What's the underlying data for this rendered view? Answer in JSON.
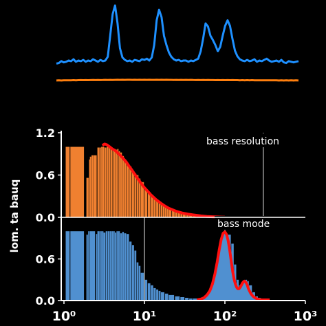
{
  "chart_data": [
    {
      "type": "line",
      "title": "",
      "xlabel": "",
      "ylabel": "",
      "grid": false,
      "legend": "none",
      "series": [
        {
          "color": "#1e90ff",
          "values": [
            0.5,
            0.6,
            0.9,
            0.7,
            0.8,
            1.0,
            0.9,
            1.2,
            0.8,
            1.0,
            0.9,
            1.1,
            0.8,
            1.0,
            0.9,
            1.2,
            1.0,
            0.8,
            1.1,
            0.9,
            1.0,
            1.6,
            5.0,
            8.5,
            9.9,
            7.0,
            3.0,
            1.5,
            1.1,
            0.9,
            1.0,
            0.8,
            1.1,
            1.0,
            0.9,
            1.2,
            1.1,
            1.3,
            1.0,
            1.5,
            3.5,
            7.5,
            9.2,
            8.0,
            5.0,
            3.5,
            2.3,
            1.6,
            1.2,
            1.0,
            1.1,
            0.9,
            1.0,
            1.0,
            0.8,
            1.0,
            0.9,
            1.1,
            1.3,
            2.5,
            4.5,
            7.0,
            6.5,
            5.0,
            4.3,
            3.5,
            2.5,
            3.2,
            5.0,
            6.6,
            7.5,
            6.6,
            4.5,
            2.6,
            1.7,
            1.2,
            1.0,
            0.9,
            1.1,
            0.9,
            1.0,
            1.2,
            0.8,
            1.0,
            0.9,
            1.1,
            1.3,
            1.0,
            0.8,
            0.9,
            1.0,
            0.8,
            1.1,
            0.7,
            0.6,
            0.9,
            0.8,
            0.7,
            0.8,
            0.9
          ]
        },
        {
          "color": "#ff7f0e",
          "values": [
            0.0,
            0.05,
            0.0,
            0.05,
            0.1,
            0.05,
            0.1,
            0.15,
            0.1,
            0.15,
            0.2,
            0.15,
            0.2,
            0.15,
            0.2,
            0.25,
            0.2,
            0.25,
            0.2,
            0.25,
            0.3,
            0.25,
            0.3,
            0.25,
            0.3,
            0.35,
            0.3,
            0.35,
            0.3,
            0.35,
            0.35,
            0.3,
            0.35,
            0.3,
            0.35,
            0.3,
            0.35,
            0.3,
            0.35,
            0.3,
            0.3,
            0.35,
            0.3,
            0.35,
            0.3,
            0.35,
            0.3,
            0.3,
            0.25,
            0.3,
            0.25,
            0.3,
            0.25,
            0.3,
            0.25,
            0.3,
            0.25,
            0.2,
            0.25,
            0.2,
            0.25,
            0.2,
            0.25,
            0.2,
            0.2,
            0.15,
            0.2,
            0.15,
            0.2,
            0.15,
            0.2,
            0.15,
            0.2,
            0.15,
            0.15,
            0.1,
            0.15,
            0.1,
            0.15,
            0.1,
            0.15,
            0.1,
            0.1,
            0.05,
            0.1,
            0.05,
            0.1,
            0.05,
            0.1,
            0.05,
            0.05,
            0.0,
            0.05,
            0.0,
            0.05,
            0.0,
            0.05,
            0.0,
            0.05,
            0.0
          ]
        }
      ]
    },
    {
      "type": "bar",
      "title": "",
      "panel_label": "bass resolution",
      "xlabel": "",
      "ylabel": "",
      "xscale": "log",
      "xlim": [
        1,
        1000
      ],
      "ylim": [
        0,
        1.2
      ],
      "yticks": [
        0.0,
        0.6,
        1.2
      ],
      "ytick_labels": [
        "0.0",
        "0.6",
        "1.2"
      ],
      "ytick_labels_partial": [
        "0.0",
        "0.6",
        "1.2"
      ],
      "bar_color": "#f08030",
      "fit_color": "#ff1010",
      "x": [
        1.05,
        1.2,
        1.9,
        2.05,
        2.1,
        2.2,
        2.3,
        2.6,
        2.8,
        2.9,
        3.0,
        3.2,
        3.4,
        3.6,
        3.8,
        4.0,
        4.2,
        4.4,
        4.6,
        4.8,
        5.0,
        5.3,
        5.6,
        6.0,
        6.5,
        7.0,
        7.5,
        8.0,
        8.5,
        9.0,
        10,
        11,
        12,
        13,
        14,
        15,
        16,
        17,
        18,
        19,
        20,
        22,
        24,
        26,
        28,
        30,
        33,
        36,
        40,
        45,
        50,
        55,
        60,
        70,
        80,
        90,
        100
      ],
      "values": [
        1.0,
        1.0,
        0.56,
        0.82,
        0.86,
        0.88,
        0.88,
        0.99,
        0.99,
        1.0,
        1.0,
        0.99,
        1.0,
        1.0,
        0.99,
        0.98,
        0.97,
        0.96,
        0.97,
        0.94,
        0.92,
        0.87,
        0.82,
        0.75,
        0.72,
        0.65,
        0.62,
        0.6,
        0.55,
        0.5,
        0.4,
        0.36,
        0.32,
        0.28,
        0.24,
        0.21,
        0.19,
        0.17,
        0.15,
        0.13,
        0.12,
        0.1,
        0.09,
        0.08,
        0.07,
        0.06,
        0.05,
        0.04,
        0.035,
        0.03,
        0.025,
        0.02,
        0.015,
        0.012,
        0.01,
        0.008,
        0.006
      ],
      "fit": {
        "x": [
          3.0,
          3.2,
          3.4,
          3.6,
          3.8,
          4.0,
          4.3,
          4.6,
          5.0,
          5.5,
          6.0,
          6.5,
          7.0,
          8.0,
          9.0,
          10,
          11,
          12,
          14,
          16,
          18,
          20,
          25,
          30,
          35,
          40,
          50,
          60,
          70,
          80,
          90,
          100
        ],
        "y": [
          1.02,
          1.04,
          1.03,
          1.01,
          0.99,
          0.97,
          0.95,
          0.92,
          0.88,
          0.83,
          0.78,
          0.72,
          0.67,
          0.57,
          0.49,
          0.42,
          0.37,
          0.32,
          0.25,
          0.2,
          0.16,
          0.13,
          0.085,
          0.06,
          0.045,
          0.035,
          0.02,
          0.013,
          0.009,
          0.006,
          0.004,
          0.003
        ]
      },
      "vlines": [
        300
      ]
    },
    {
      "type": "bar",
      "title": "",
      "panel_label": "bass mode",
      "xlabel": "",
      "ylabel": "",
      "ylabel_visible": "lom. ta bauq",
      "xscale": "log",
      "xlim": [
        1,
        1000
      ],
      "ylim": [
        0,
        1.2
      ],
      "yticks": [
        0.0,
        0.6
      ],
      "ytick_labels": [
        "0.0",
        "0.6"
      ],
      "xticks": [
        1,
        10,
        100,
        1000
      ],
      "xtick_labels": [
        "10⁰",
        "10¹",
        "10²",
        "10³"
      ],
      "bar_color": "#5090d0",
      "fit_color": "#ff1010",
      "x": [
        1.05,
        1.2,
        1.9,
        2.0,
        2.1,
        2.5,
        2.6,
        2.8,
        2.9,
        3.0,
        3.1,
        3.3,
        3.5,
        3.7,
        3.9,
        4.1,
        4.3,
        4.5,
        4.7,
        5.0,
        5.3,
        5.6,
        6.0,
        6.5,
        7.0,
        7.5,
        8.0,
        8.5,
        9.0,
        10,
        11,
        12,
        13,
        14,
        15,
        16,
        18,
        20,
        24,
        28,
        32,
        36,
        40,
        48,
        56,
        64,
        72,
        80,
        90,
        100,
        110,
        120,
        130,
        140,
        150,
        160,
        170,
        180,
        190,
        200,
        220,
        240,
        260,
        280,
        300,
        320,
        340,
        360,
        380,
        400
      ],
      "values": [
        1.0,
        1.0,
        0.95,
        1.0,
        1.0,
        0.96,
        1.0,
        1.0,
        1.0,
        1.0,
        0.98,
        1.0,
        1.0,
        1.0,
        1.0,
        1.0,
        0.98,
        1.0,
        1.0,
        0.97,
        0.99,
        0.97,
        0.96,
        0.85,
        0.8,
        0.72,
        0.55,
        0.5,
        0.4,
        0.3,
        0.25,
        0.22,
        0.18,
        0.16,
        0.14,
        0.12,
        0.1,
        0.08,
        0.06,
        0.05,
        0.04,
        0.03,
        0.03,
        0.02,
        0.05,
        0.12,
        0.25,
        0.48,
        0.68,
        0.88,
        0.95,
        0.82,
        0.52,
        0.3,
        0.22,
        0.2,
        0.25,
        0.3,
        0.28,
        0.22,
        0.12,
        0.06,
        0.04,
        0.03,
        0.02,
        0.02,
        0.015,
        0.01,
        0.01,
        0.005
      ],
      "fit": {
        "x": [
          45,
          50,
          55,
          60,
          65,
          70,
          75,
          80,
          85,
          90,
          95,
          100,
          105,
          110,
          115,
          120,
          125,
          130,
          135,
          140,
          145,
          150,
          155,
          160,
          165,
          170,
          175,
          180,
          185,
          190,
          195,
          200,
          210,
          220,
          230,
          240,
          250,
          260,
          270,
          280,
          290,
          300,
          320,
          340,
          360
        ],
        "y": [
          0.01,
          0.02,
          0.04,
          0.08,
          0.14,
          0.24,
          0.38,
          0.55,
          0.73,
          0.88,
          0.97,
          0.99,
          0.95,
          0.86,
          0.72,
          0.56,
          0.42,
          0.31,
          0.24,
          0.19,
          0.17,
          0.17,
          0.19,
          0.22,
          0.25,
          0.27,
          0.28,
          0.27,
          0.25,
          0.22,
          0.18,
          0.15,
          0.1,
          0.07,
          0.05,
          0.035,
          0.025,
          0.02,
          0.015,
          0.012,
          0.01,
          0.01,
          0.01,
          0.01,
          0.01
        ]
      },
      "vlines": [
        10,
        100
      ]
    }
  ]
}
